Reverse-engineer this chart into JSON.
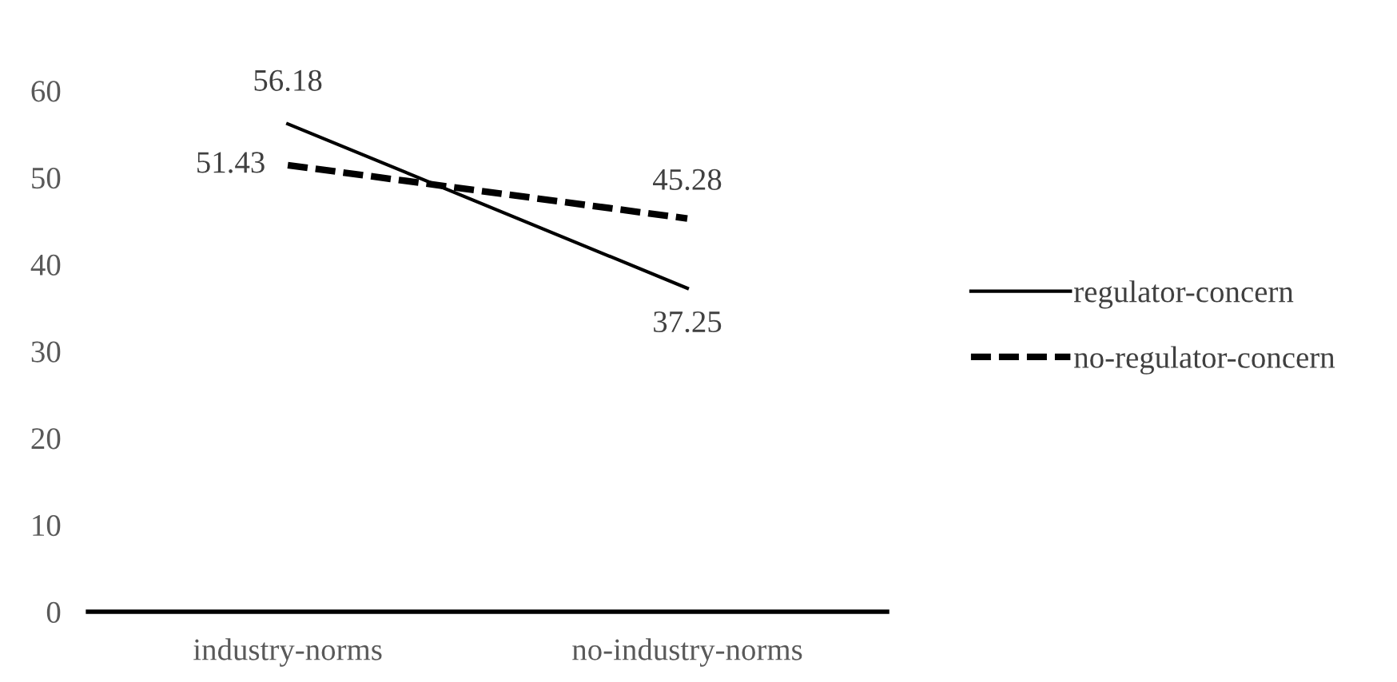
{
  "chart_data": {
    "type": "line",
    "categories": [
      "industry-norms",
      "no-industry-norms"
    ],
    "series": [
      {
        "name": "regulator-concern",
        "color": "#000000",
        "values": [
          56.18,
          37.25
        ],
        "line_style": "solid"
      },
      {
        "name": "no-regulator-concern",
        "color": "#000000",
        "values": [
          51.43,
          45.28
        ],
        "line_style": "dashed"
      }
    ],
    "ylim": [
      0,
      60
    ],
    "yticks": [
      0,
      10,
      20,
      30,
      40,
      50,
      60
    ],
    "grid": false,
    "legend": "right",
    "data_labels": true,
    "marker": "none"
  }
}
